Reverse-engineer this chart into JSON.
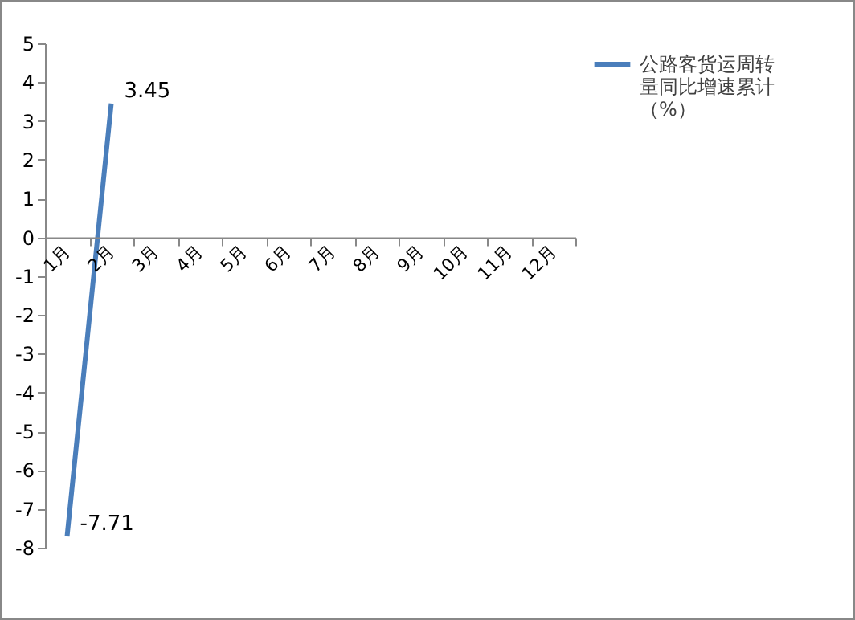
{
  "chart_data": {
    "type": "line",
    "categories": [
      "1月",
      "2月",
      "3月",
      "4月",
      "5月",
      "6月",
      "7月",
      "8月",
      "9月",
      "10月",
      "11月",
      "12月"
    ],
    "series": [
      {
        "name": "公路客货运周转量同比增速累计（%）",
        "color": "#4a7ebb",
        "values": [
          -7.71,
          3.45,
          null,
          null,
          null,
          null,
          null,
          null,
          null,
          null,
          null,
          null
        ]
      }
    ],
    "ylim": [
      -8,
      5
    ],
    "yticks": [
      -8,
      -7,
      -6,
      -5,
      -4,
      -3,
      -2,
      -1,
      0,
      1,
      2,
      3,
      4,
      5
    ],
    "grid": false,
    "legend": "right",
    "marker": "none",
    "line_style": "solid",
    "data_labels": true
  }
}
